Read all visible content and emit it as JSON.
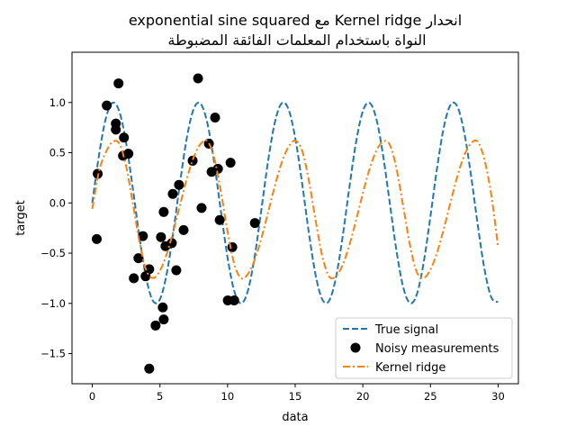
{
  "chart_data": {
    "type": "line",
    "title_lines": [
      "انحدار Kernel ridge مع  exponential sine squared",
      "النواة باستخدام المعلمات الفائقة المضبوطة"
    ],
    "xlabel": "data",
    "ylabel": "target",
    "xlim": [
      -1.5,
      31.5
    ],
    "ylim": [
      -1.8,
      1.5
    ],
    "xticks": [
      0,
      5,
      10,
      15,
      20,
      25,
      30
    ],
    "xtick_labels": [
      "0",
      "5",
      "10",
      "15",
      "20",
      "25",
      "30"
    ],
    "yticks": [
      -1.5,
      -1.0,
      -0.5,
      0.0,
      0.5,
      1.0
    ],
    "ytick_labels": [
      "−1.5",
      "−1.0",
      "−0.5",
      "0.0",
      "0.5",
      "1.0"
    ],
    "grid": false,
    "legend_position": "lower-right",
    "series": [
      {
        "name": "True signal",
        "kind": "line",
        "style": "dashed",
        "color": "#1f77b4",
        "x_start": 0,
        "x_step": 0.5,
        "y": [
          0,
          0.479,
          0.841,
          0.997,
          0.909,
          0.598,
          0.141,
          -0.351,
          -0.757,
          -0.978,
          -0.959,
          -0.706,
          -0.279,
          0.215,
          0.657,
          0.938,
          0.989,
          0.798,
          0.412,
          -0.075,
          -0.544,
          -0.88,
          -1.0,
          -0.875,
          -0.537,
          -0.066,
          0.42,
          0.804,
          0.991,
          0.935,
          0.65,
          0.206,
          -0.288,
          -0.712,
          -0.961,
          -0.976,
          -0.751,
          -0.342,
          0.15,
          0.605,
          0.913,
          0.996,
          0.837,
          0.471,
          -0.009,
          -0.487,
          -0.846,
          -0.998,
          -0.906,
          -0.591,
          -0.132,
          0.359,
          0.763,
          0.98,
          0.956,
          0.699,
          0.271,
          -0.224,
          -0.664,
          -0.941,
          -0.988
        ]
      },
      {
        "name": "Noisy measurements",
        "kind": "scatter",
        "color": "#000000",
        "points": [
          [
            0.33,
            -0.36
          ],
          [
            0.4,
            0.29
          ],
          [
            1.07,
            0.97
          ],
          [
            1.94,
            1.19
          ],
          [
            1.74,
            0.79
          ],
          [
            1.74,
            0.73
          ],
          [
            2.34,
            0.65
          ],
          [
            2.27,
            0.47
          ],
          [
            2.67,
            0.49
          ],
          [
            3.07,
            -0.75
          ],
          [
            3.41,
            -0.55
          ],
          [
            3.74,
            -0.33
          ],
          [
            3.94,
            -0.73
          ],
          [
            4.21,
            -0.66
          ],
          [
            4.21,
            -1.65
          ],
          [
            4.68,
            -1.22
          ],
          [
            5.08,
            -0.34
          ],
          [
            5.21,
            -1.04
          ],
          [
            5.28,
            -0.09
          ],
          [
            5.28,
            -1.16
          ],
          [
            5.41,
            -0.43
          ],
          [
            5.88,
            -0.4
          ],
          [
            5.95,
            0.09
          ],
          [
            6.21,
            -0.67
          ],
          [
            6.41,
            0.18
          ],
          [
            6.75,
            -0.27
          ],
          [
            7.42,
            0.42
          ],
          [
            7.82,
            1.24
          ],
          [
            8.08,
            -0.05
          ],
          [
            8.62,
            0.59
          ],
          [
            8.82,
            0.31
          ],
          [
            9.08,
            0.85
          ],
          [
            9.29,
            0.34
          ],
          [
            9.42,
            -0.17
          ],
          [
            10.02,
            -0.97
          ],
          [
            10.22,
            0.4
          ],
          [
            10.35,
            -0.44
          ],
          [
            10.49,
            -0.97
          ],
          [
            12.02,
            -0.2
          ]
        ]
      },
      {
        "name": "Kernel ridge",
        "kind": "line",
        "style": "dashdot",
        "color": "#ff7f0e",
        "x_start": 0,
        "x_step": 0.5,
        "y": [
          -0.06,
          0.316,
          0.504,
          0.607,
          0.59,
          0.366,
          -0.004,
          -0.396,
          -0.674,
          -0.748,
          -0.675,
          -0.51,
          -0.277,
          -0.012,
          0.246,
          0.456,
          0.586,
          0.615,
          0.454,
          0.116,
          -0.285,
          -0.609,
          -0.749,
          -0.708,
          -0.568,
          -0.352,
          -0.092,
          0.172,
          0.4,
          0.557,
          0.619,
          0.525,
          0.23,
          -0.166,
          -0.528,
          -0.731,
          -0.731,
          -0.619,
          -0.423,
          -0.172,
          0.095,
          0.338,
          0.519,
          0.612,
          0.577,
          0.334,
          -0.045,
          -0.431,
          -0.692,
          -0.745,
          -0.663,
          -0.489,
          -0.251,
          0.016,
          0.27,
          0.473,
          0.594,
          0.609,
          0.426,
          0.076,
          -0.44
        ]
      }
    ]
  }
}
